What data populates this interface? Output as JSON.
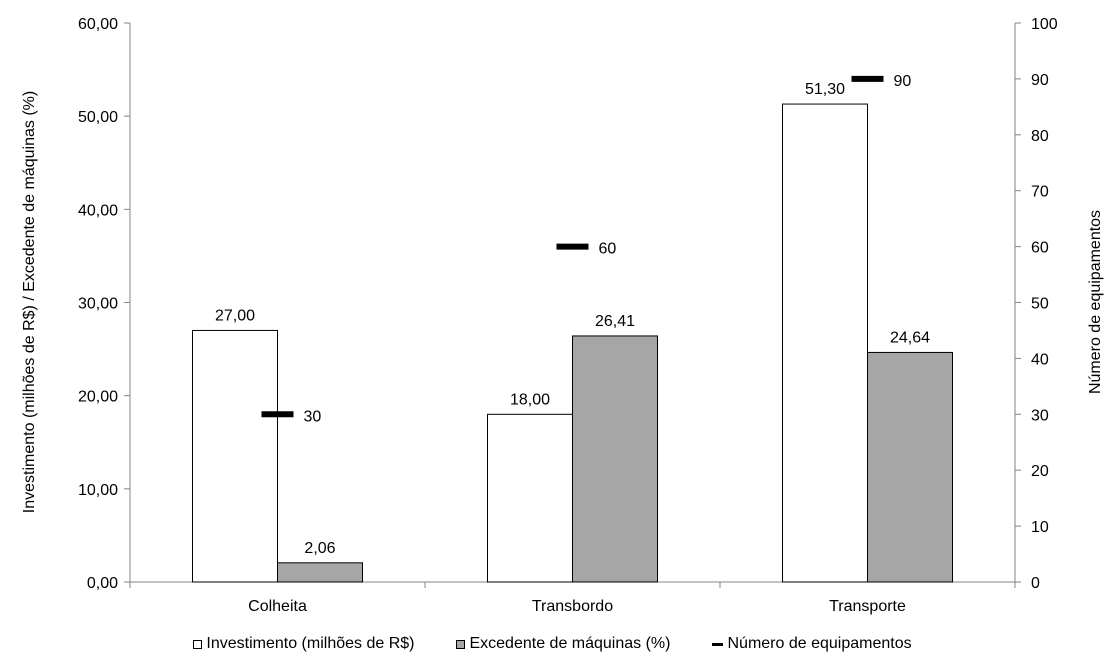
{
  "chart_data": {
    "type": "bar",
    "title": "",
    "categories": [
      "Colheita",
      "Transbordo",
      "Transporte"
    ],
    "series": [
      {
        "name": "Investimento (milhões de R$)",
        "kind": "bar",
        "axis": "left",
        "color": "#ffffff",
        "values": [
          27.0,
          18.0,
          51.3
        ],
        "labels": [
          "27,00",
          "18,00",
          "51,30"
        ]
      },
      {
        "name": "Excedente de máquinas (%)",
        "kind": "bar",
        "axis": "left",
        "color": "#a6a6a6",
        "values": [
          2.06,
          26.41,
          24.64
        ],
        "labels": [
          "2,06",
          "26,41",
          "24,64"
        ]
      },
      {
        "name": "Número de equipamentos",
        "kind": "marker",
        "axis": "right",
        "color": "#000000",
        "values": [
          30,
          60,
          90
        ],
        "labels": [
          "30",
          "60",
          "90"
        ]
      }
    ],
    "ylabel": "Investimento (milhões de R$) / Excedente de máquinas (%)",
    "y2label": "Número de equipamentos",
    "ylim": [
      0,
      60
    ],
    "y2lim": [
      0,
      100
    ],
    "yticks": [
      "0,00",
      "10,00",
      "20,00",
      "30,00",
      "40,00",
      "50,00",
      "60,00"
    ],
    "y2ticks": [
      "0",
      "10",
      "20",
      "30",
      "40",
      "50",
      "60",
      "70",
      "80",
      "90",
      "100"
    ],
    "grid": false,
    "legend_position": "bottom"
  }
}
